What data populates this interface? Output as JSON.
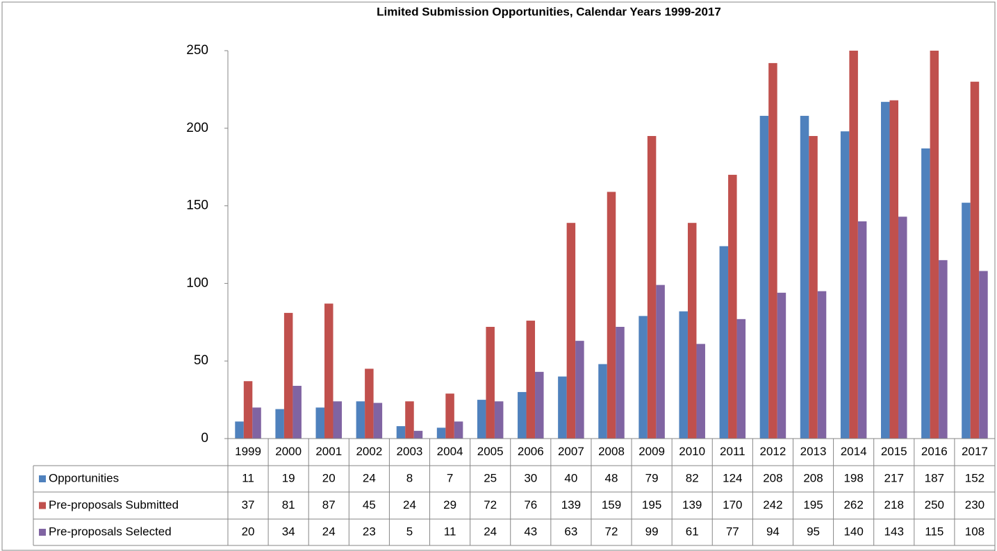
{
  "chart_data": {
    "type": "bar",
    "title": "Limited Submission Opportunities, Calendar Years 1999-2017",
    "categories": [
      "1999",
      "2000",
      "2001",
      "2002",
      "2003",
      "2004",
      "2005",
      "2006",
      "2007",
      "2008",
      "2009",
      "2010",
      "2011",
      "2012",
      "2013",
      "2014",
      "2015",
      "2016",
      "2017"
    ],
    "series": [
      {
        "name": "Opportunities",
        "color": "#4f81bd",
        "values": [
          11,
          19,
          20,
          24,
          8,
          7,
          25,
          30,
          40,
          48,
          79,
          82,
          124,
          208,
          208,
          198,
          217,
          187,
          152
        ]
      },
      {
        "name": "Pre-proposals Submitted",
        "color": "#c0504d",
        "values": [
          37,
          81,
          87,
          45,
          24,
          29,
          72,
          76,
          139,
          159,
          195,
          139,
          170,
          242,
          195,
          262,
          218,
          250,
          230
        ]
      },
      {
        "name": "Pre-proposals Selected",
        "color": "#8064a2",
        "values": [
          20,
          34,
          24,
          23,
          5,
          11,
          24,
          43,
          63,
          72,
          99,
          61,
          77,
          94,
          95,
          140,
          143,
          115,
          108
        ]
      }
    ],
    "ylim": [
      0,
      250
    ],
    "yticks": [
      0,
      50,
      100,
      150,
      200,
      250
    ],
    "grid": false
  }
}
